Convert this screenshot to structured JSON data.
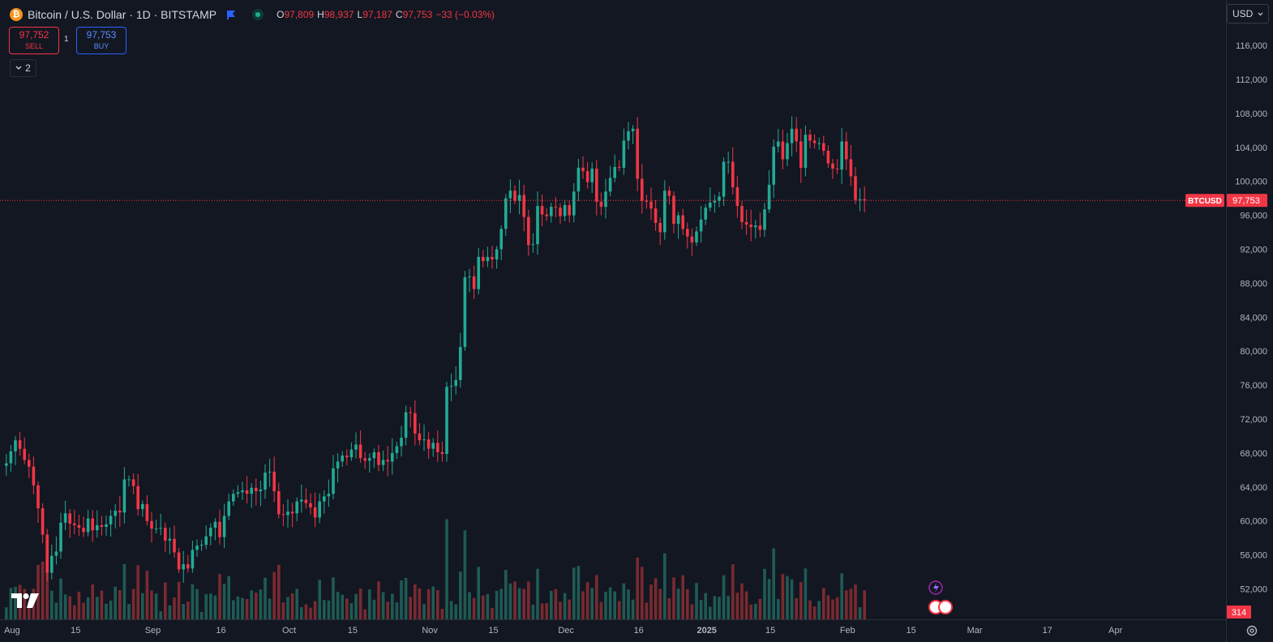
{
  "header": {
    "symbol_title": "Bitcoin / U.S. Dollar · 1D · BITSTAMP",
    "coin_icon": "bitcoin-icon",
    "open_label": "O",
    "open_value": "97,809",
    "high_label": "H",
    "high_value": "98,937",
    "low_label": "L",
    "low_value": "97,187",
    "close_label": "C",
    "close_value": "97,753",
    "change": "−33 (−0.03%)"
  },
  "trade": {
    "sell_price": "97,752",
    "sell_label": "SELL",
    "spread": "1",
    "buy_price": "97,753",
    "buy_label": "BUY"
  },
  "indicators_collapsed_count": "2",
  "currency": "USD",
  "price_line": {
    "symbol": "BTCUSD",
    "price": "97,753",
    "value": 97753
  },
  "volume_label": "314",
  "colors": {
    "up": "#22ab94",
    "down": "#f23645",
    "background": "#131722",
    "grid_text": "#b2b5be"
  },
  "chart_data": {
    "type": "candlestick",
    "title": "Bitcoin / U.S. Dollar · 1D · BITSTAMP",
    "ylim": [
      49000,
      118000
    ],
    "y_ticks": [
      "116,000",
      "112,000",
      "108,000",
      "104,000",
      "100,000",
      "96,000",
      "92,000",
      "88,000",
      "84,000",
      "80,000",
      "76,000",
      "72,000",
      "68,000",
      "64,000",
      "60,000",
      "56,000",
      "52,000"
    ],
    "x_ticks": [
      "Aug",
      "15",
      "Sep",
      "16",
      "Oct",
      "15",
      "Nov",
      "15",
      "Dec",
      "16",
      "2025",
      "15",
      "Feb",
      "15",
      "Mar",
      "17",
      "Apr"
    ],
    "x_tick_days": [
      1,
      15,
      32,
      47,
      62,
      76,
      93,
      107,
      123,
      139,
      154,
      168,
      185,
      199,
      213,
      229,
      244
    ],
    "first_day": "2024-07-31",
    "close": [
      66800,
      68200,
      69500,
      68500,
      67200,
      66400,
      64200,
      61500,
      58400,
      53900,
      55900,
      56400,
      59800,
      60900,
      59700,
      59500,
      59200,
      58700,
      60300,
      58900,
      59500,
      59300,
      59600,
      60600,
      61200,
      61000,
      64900,
      64900,
      64100,
      61400,
      62000,
      60000,
      59100,
      59100,
      59200,
      57700,
      57900,
      56300,
      54300,
      54900,
      54400,
      56600,
      57100,
      57200,
      58200,
      59200,
      59900,
      58100,
      60600,
      62300,
      63200,
      63400,
      63600,
      63200,
      63900,
      63500,
      63700,
      65700,
      65800,
      63500,
      60800,
      60700,
      61100,
      60900,
      62300,
      62500,
      62100,
      61600,
      60400,
      62300,
      62900,
      63200,
      66200,
      67000,
      67700,
      67500,
      68400,
      69000,
      67400,
      67100,
      67400,
      68100,
      66600,
      67200,
      67000,
      68000,
      68800,
      69800,
      72800,
      72700,
      70300,
      69500,
      69600,
      68500,
      69200,
      68100,
      67900,
      75800,
      75900,
      76600,
      80500,
      88700,
      88800,
      87300,
      91100,
      90600,
      91100,
      90800,
      92000,
      94400,
      98000,
      98900,
      97700,
      98400,
      95800,
      92500,
      92600,
      97100,
      96100,
      95900,
      97000,
      96900,
      95900,
      97200,
      96000,
      98800,
      101600,
      101200,
      99900,
      101500,
      97600,
      97000,
      98800,
      100400,
      101700,
      101600,
      104800,
      105900,
      106200,
      100300,
      97700,
      97600,
      96800,
      95100,
      94000,
      98900,
      98300,
      95000,
      96000,
      94400,
      93500,
      92800,
      94100,
      95500,
      96900,
      97500,
      97700,
      98200,
      102300,
      102300,
      99300,
      97100,
      95200,
      94900,
      94600,
      94800,
      94300,
      96700,
      99600,
      104100,
      104700,
      102600,
      104500,
      106200,
      104700,
      101600,
      105500,
      104800,
      104500,
      104500,
      103600,
      102100,
      101500,
      101400,
      104700,
      102600,
      100600,
      97800,
      97900,
      97753
    ],
    "volume_max": 66500
  }
}
